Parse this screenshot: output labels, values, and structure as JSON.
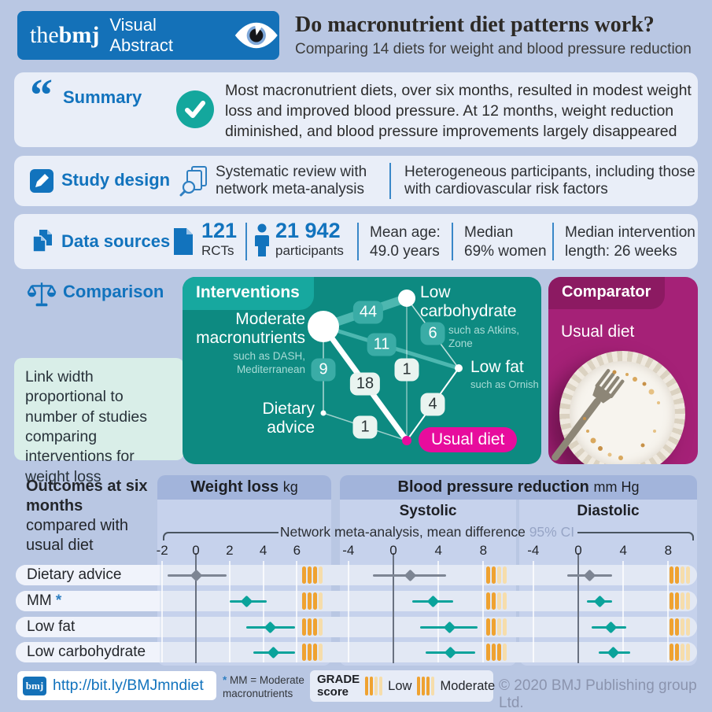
{
  "colors": {
    "page_bg": "#b9c7e3",
    "card_bg": "#e9eef8",
    "bmj_blue": "#1471b8",
    "heading_blue": "#1273bd",
    "teal_panel": "#0d8a81",
    "teal_accent": "#17a89f",
    "magenta_panel": "#a52177",
    "magenta_accent": "#e70c9d",
    "forest_teal": "#0aa39b",
    "forest_gray": "#7d8593",
    "grade_orange": "#efa230",
    "grade_orange_faded": "#f6ddab"
  },
  "icons": {
    "quote": "“"
  },
  "header": {
    "logo_the": "the",
    "logo_bmj": "bmj",
    "logo_suffix": "Visual Abstract",
    "title": "Do macronutrient diet patterns work?",
    "subtitle": "Comparing 14 diets for weight and blood pressure reduction"
  },
  "summary": {
    "label": "Summary",
    "text": "Most macronutrient diets, over six months, resulted in modest weight loss and improved blood pressure. At 12 months, weight reduction diminished, and blood pressure improvements largely disappeared"
  },
  "study_design": {
    "label": "Study design",
    "method": "Systematic review with network meta-analysis",
    "participants": "Heterogeneous participants, including those with cardiovascular risk factors"
  },
  "data_sources": {
    "label": "Data sources",
    "rcts_value": "121",
    "rcts_label": "RCTs",
    "participants_value": "21 942",
    "participants_label": "participants",
    "stats": [
      {
        "line1": "Mean age:",
        "line2": "49.0 years"
      },
      {
        "line1": "Median",
        "line2": "69% women"
      },
      {
        "line1": "Median intervention",
        "line2": "length: 26 weeks"
      }
    ]
  },
  "comparison": {
    "label": "Comparison",
    "note": "Link width proportional to number of studies comparing interventions for weight loss",
    "interventions_title": "Interventions",
    "comparator_title": "Comparator",
    "comparator_value": "Usual diet"
  },
  "outcomes": {
    "heading_bold": "Outcomes at six months",
    "heading_rest": "compared with usual diet",
    "col_weight": "Weight loss",
    "col_weight_unit": "kg",
    "col_bp": "Blood pressure reduction",
    "col_bp_unit": "mm Hg",
    "col_systolic": "Systolic",
    "col_diastolic": "Diastolic",
    "annotation": "Network meta-analysis, mean difference",
    "ci_label": "95% CI"
  },
  "footer": {
    "url": "http://bit.ly/BMJmndiet",
    "logo": "bmj",
    "footnote_star": "*",
    "footnote": "MM = Moderate macronutrients",
    "grade_title_1": "GRADE",
    "grade_title_2": "score",
    "grade_low": "Low",
    "grade_moderate": "Moderate",
    "copyright": "© 2020 BMJ Publishing group Ltd."
  },
  "chart_data": [
    {
      "type": "network",
      "title": "Interventions",
      "note": "Link width proportional to number of studies comparing interventions for weight loss",
      "nodes": [
        {
          "id": "mm",
          "label": "Moderate macronutrients",
          "sublabel": "such as DASH, Mediterranean",
          "size": "large"
        },
        {
          "id": "lc",
          "label": "Low carbohydrate",
          "sublabel": "such as Atkins, Zone",
          "size": "medium"
        },
        {
          "id": "lf",
          "label": "Low fat",
          "sublabel": "such as Ornish",
          "size": "small"
        },
        {
          "id": "da",
          "label": "Dietary advice",
          "sublabel": "",
          "size": "small"
        },
        {
          "id": "ud",
          "label": "Usual diet",
          "sublabel": "",
          "size": "small",
          "highlight": true
        }
      ],
      "links": [
        {
          "from": "mm",
          "to": "lc",
          "studies": 44
        },
        {
          "from": "mm",
          "to": "lf",
          "studies": 11
        },
        {
          "from": "mm",
          "to": "da",
          "studies": 9
        },
        {
          "from": "mm",
          "to": "ud",
          "studies": 18
        },
        {
          "from": "lc",
          "to": "lf",
          "studies": 6
        },
        {
          "from": "lc",
          "to": "ud",
          "studies": 1
        },
        {
          "from": "lf",
          "to": "ud",
          "studies": 4
        },
        {
          "from": "da",
          "to": "ud",
          "studies": 1
        }
      ]
    },
    {
      "type": "forest",
      "title": "Outcomes at six months compared with usual diet",
      "annotation": "Network meta-analysis, mean difference",
      "ci_label": "95% CI",
      "grade_legend": {
        "Low": 2,
        "Moderate": 3,
        "bars_total": 4
      },
      "columns": [
        {
          "id": "weight_loss",
          "label": "Weight loss",
          "unit": "kg",
          "ticks": [
            -2,
            0,
            2,
            4,
            6
          ],
          "range": [
            -2.4,
            7.2
          ]
        },
        {
          "id": "systolic",
          "label": "Systolic",
          "unit": "mm Hg",
          "ticks": [
            -4,
            0,
            4,
            8
          ],
          "range": [
            -4.8,
            10.2
          ]
        },
        {
          "id": "diastolic",
          "label": "Diastolic",
          "unit": "mm Hg",
          "ticks": [
            -4,
            0,
            4,
            8
          ],
          "range": [
            -4.8,
            10.2
          ]
        }
      ],
      "rows": [
        {
          "label": "Dietary advice",
          "asterisk": false,
          "color": "gray",
          "weight_loss": {
            "mean": 0.0,
            "lo": -1.7,
            "hi": 1.8,
            "grade": "Moderate"
          },
          "systolic": {
            "mean": 1.5,
            "lo": -1.8,
            "hi": 4.7,
            "grade": "Low"
          },
          "diastolic": {
            "mean": 1.0,
            "lo": -1.0,
            "hi": 3.0,
            "grade": "Low"
          }
        },
        {
          "label": "MM",
          "asterisk": true,
          "color": "teal",
          "weight_loss": {
            "mean": 3.0,
            "lo": 2.0,
            "hi": 4.2,
            "grade": "Moderate"
          },
          "systolic": {
            "mean": 3.5,
            "lo": 1.7,
            "hi": 5.3,
            "grade": "Low"
          },
          "diastolic": {
            "mean": 1.9,
            "lo": 0.8,
            "hi": 3.0,
            "grade": "Low"
          }
        },
        {
          "label": "Low fat",
          "asterisk": false,
          "color": "teal",
          "weight_loss": {
            "mean": 4.4,
            "lo": 3.0,
            "hi": 5.9,
            "grade": "Moderate"
          },
          "systolic": {
            "mean": 5.0,
            "lo": 2.4,
            "hi": 7.5,
            "grade": "Low"
          },
          "diastolic": {
            "mean": 2.9,
            "lo": 1.2,
            "hi": 4.3,
            "grade": "Low"
          }
        },
        {
          "label": "Low carbohydrate",
          "asterisk": false,
          "color": "teal",
          "weight_loss": {
            "mean": 4.6,
            "lo": 3.4,
            "hi": 5.9,
            "grade": "Moderate"
          },
          "systolic": {
            "mean": 5.1,
            "lo": 2.9,
            "hi": 7.3,
            "grade": "Moderate"
          },
          "diastolic": {
            "mean": 3.1,
            "lo": 1.8,
            "hi": 4.6,
            "grade": "Low"
          }
        }
      ]
    }
  ]
}
